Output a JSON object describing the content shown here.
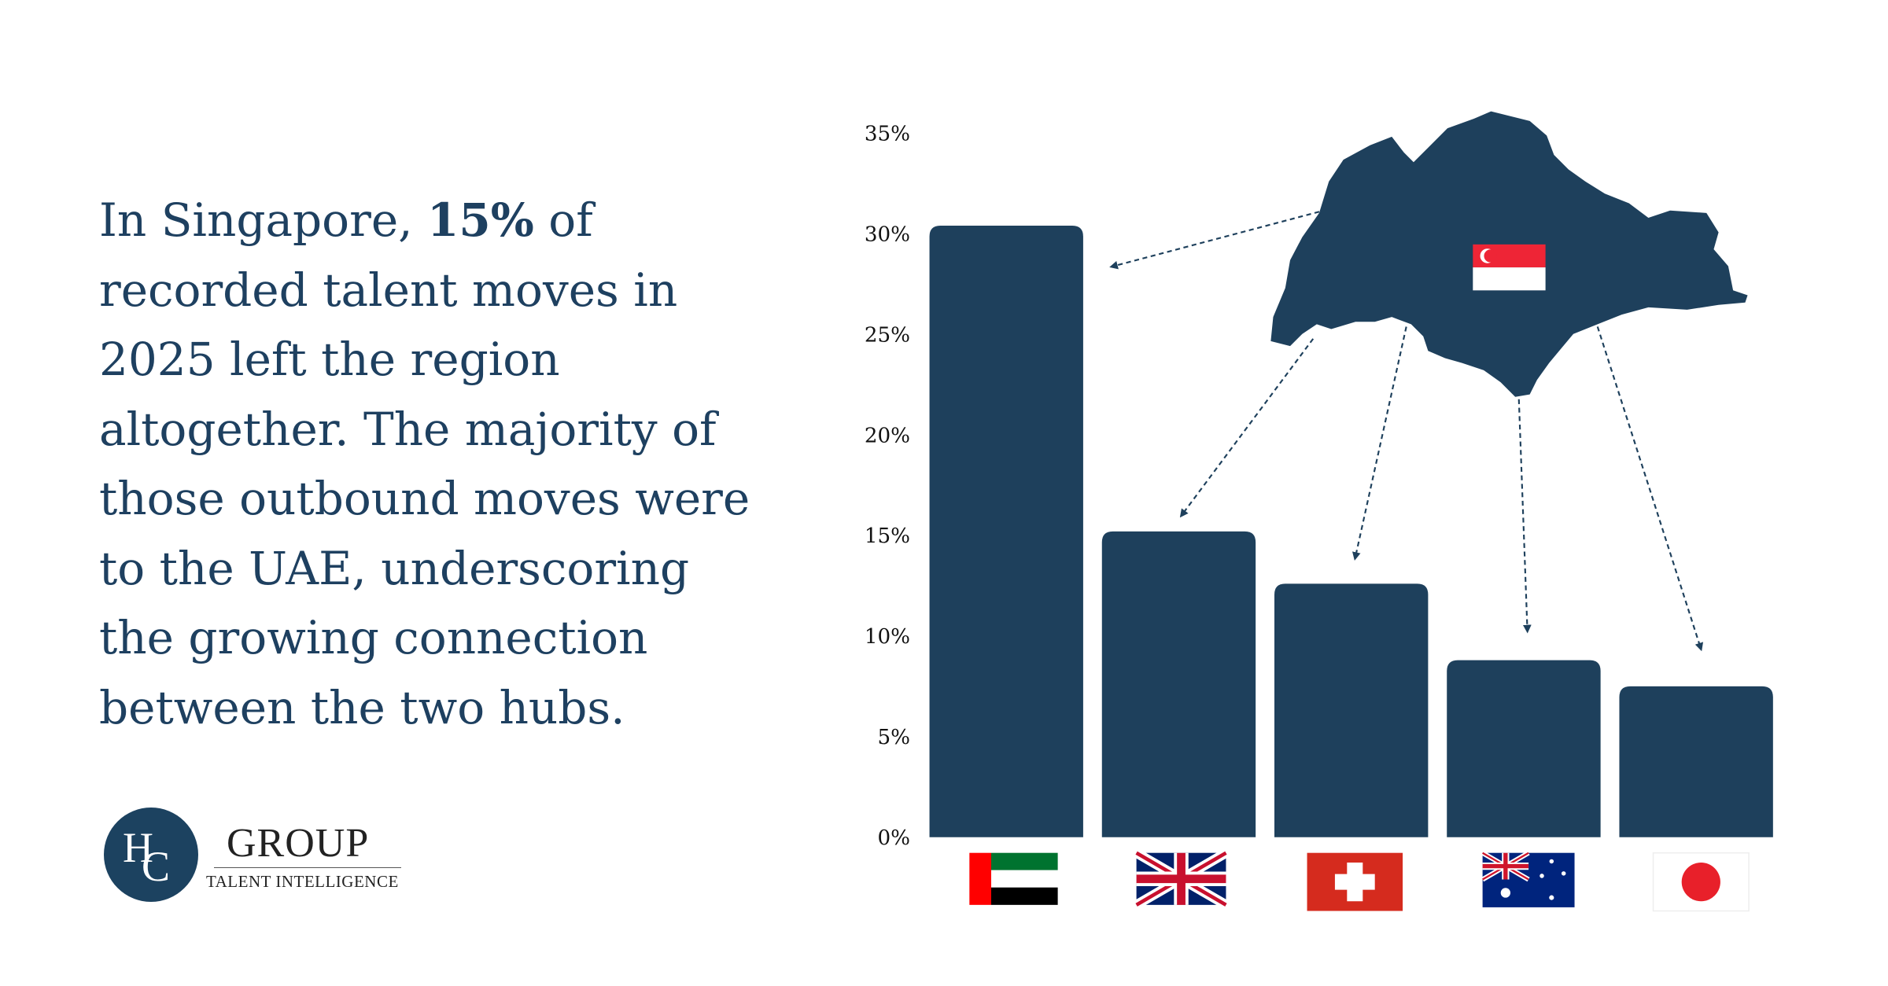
{
  "body_text": {
    "part1": "In Singapore, ",
    "bold": "15%",
    "part2": " of recorded talent moves in 2025 left the region altogether. The majority of those outbound moves were to the UAE, underscoring the growing connection between the two hubs."
  },
  "logo": {
    "mark_h": "H",
    "mark_c": "C",
    "name": "GROUP",
    "tagline": "TALENT INTELLIGENCE"
  },
  "colors": {
    "bar": "#1e405c",
    "text": "#1e4060"
  },
  "chart_data": {
    "type": "bar",
    "categories": [
      "UAE",
      "United Kingdom",
      "Switzerland",
      "Australia",
      "Japan"
    ],
    "category_icons": [
      "uae-flag",
      "uk-flag",
      "switzerland-flag",
      "australia-flag",
      "japan-flag"
    ],
    "values": [
      30.4,
      15.2,
      12.6,
      8.8,
      7.5
    ],
    "ylim": [
      0,
      35
    ],
    "yticks": [
      "0%",
      "5%",
      "10%",
      "15%",
      "20%",
      "25%",
      "30%",
      "35%"
    ],
    "grid": false,
    "origin": "Singapore",
    "origin_icon": "singapore-map-with-flag"
  }
}
